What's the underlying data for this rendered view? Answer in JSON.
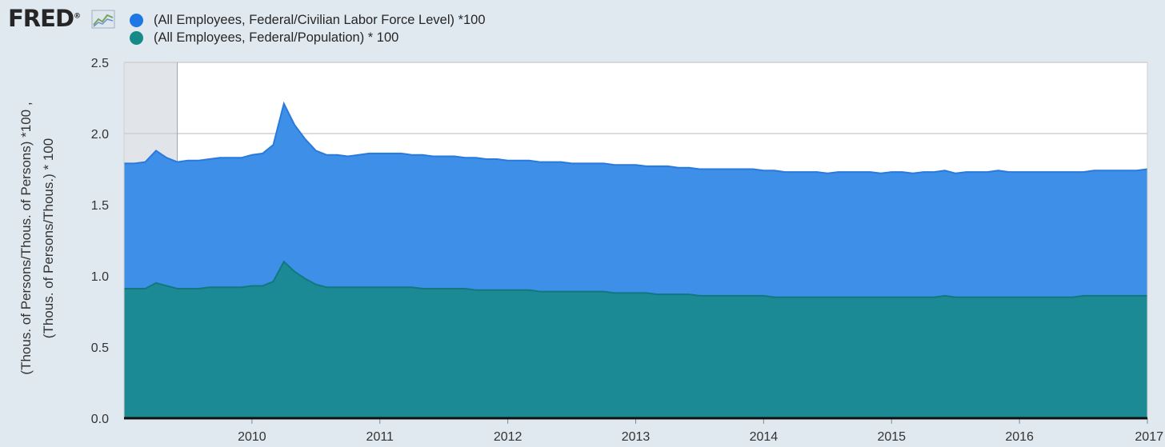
{
  "brand": {
    "logo_text": "FRED",
    "logo_mark": "®",
    "icon": "line-chart-icon"
  },
  "chart_data": {
    "type": "area",
    "title": "",
    "ylabel_lines": [
      "(Thous. of Persons/Thous. of Persons) *100 ,",
      "(Thous. of Persons/Thous.) * 100"
    ],
    "xlabel": "",
    "ylim": [
      0,
      2.5
    ],
    "yticks": [
      "0.0",
      "0.5",
      "1.0",
      "1.5",
      "2.0",
      "2.5"
    ],
    "xlim": [
      "2009-01",
      "2017-01"
    ],
    "xticks": [
      "2010",
      "2011",
      "2012",
      "2013",
      "2014",
      "2015",
      "2016",
      "2017"
    ],
    "grid": "horizontal",
    "recession_shading": [
      "2009-01",
      "2009-06"
    ],
    "x": [
      "2009-01",
      "2009-02",
      "2009-03",
      "2009-04",
      "2009-05",
      "2009-06",
      "2009-07",
      "2009-08",
      "2009-09",
      "2009-10",
      "2009-11",
      "2009-12",
      "2010-01",
      "2010-02",
      "2010-03",
      "2010-04",
      "2010-05",
      "2010-06",
      "2010-07",
      "2010-08",
      "2010-09",
      "2010-10",
      "2010-11",
      "2010-12",
      "2011-01",
      "2011-02",
      "2011-03",
      "2011-04",
      "2011-05",
      "2011-06",
      "2011-07",
      "2011-08",
      "2011-09",
      "2011-10",
      "2011-11",
      "2011-12",
      "2012-01",
      "2012-02",
      "2012-03",
      "2012-04",
      "2012-05",
      "2012-06",
      "2012-07",
      "2012-08",
      "2012-09",
      "2012-10",
      "2012-11",
      "2012-12",
      "2013-01",
      "2013-02",
      "2013-03",
      "2013-04",
      "2013-05",
      "2013-06",
      "2013-07",
      "2013-08",
      "2013-09",
      "2013-10",
      "2013-11",
      "2013-12",
      "2014-01",
      "2014-02",
      "2014-03",
      "2014-04",
      "2014-05",
      "2014-06",
      "2014-07",
      "2014-08",
      "2014-09",
      "2014-10",
      "2014-11",
      "2014-12",
      "2015-01",
      "2015-02",
      "2015-03",
      "2015-04",
      "2015-05",
      "2015-06",
      "2015-07",
      "2015-08",
      "2015-09",
      "2015-10",
      "2015-11",
      "2015-12",
      "2016-01",
      "2016-02",
      "2016-03",
      "2016-04",
      "2016-05",
      "2016-06",
      "2016-07",
      "2016-08",
      "2016-09",
      "2016-10",
      "2016-11",
      "2016-12",
      "2017-01"
    ],
    "series": [
      {
        "name": "(All Employees, Federal/Civilian Labor Force Level) *100",
        "color": "#3d8fe8",
        "line_color": "#2a7ade",
        "values": [
          1.79,
          1.79,
          1.8,
          1.88,
          1.83,
          1.8,
          1.81,
          1.81,
          1.82,
          1.83,
          1.83,
          1.83,
          1.85,
          1.86,
          1.92,
          2.21,
          2.06,
          1.96,
          1.88,
          1.85,
          1.85,
          1.84,
          1.85,
          1.86,
          1.86,
          1.86,
          1.86,
          1.85,
          1.85,
          1.84,
          1.84,
          1.84,
          1.83,
          1.83,
          1.82,
          1.82,
          1.81,
          1.81,
          1.81,
          1.8,
          1.8,
          1.8,
          1.79,
          1.79,
          1.79,
          1.79,
          1.78,
          1.78,
          1.78,
          1.77,
          1.77,
          1.77,
          1.76,
          1.76,
          1.75,
          1.75,
          1.75,
          1.75,
          1.75,
          1.75,
          1.74,
          1.74,
          1.73,
          1.73,
          1.73,
          1.73,
          1.72,
          1.73,
          1.73,
          1.73,
          1.73,
          1.72,
          1.73,
          1.73,
          1.72,
          1.73,
          1.73,
          1.74,
          1.72,
          1.73,
          1.73,
          1.73,
          1.74,
          1.73,
          1.73,
          1.73,
          1.73,
          1.73,
          1.73,
          1.73,
          1.73,
          1.74,
          1.74,
          1.74,
          1.74,
          1.74,
          1.75
        ]
      },
      {
        "name": "(All Employees, Federal/Population) * 100",
        "color": "#1b8a94",
        "line_color": "#11787f",
        "values": [
          0.91,
          0.91,
          0.91,
          0.95,
          0.93,
          0.91,
          0.91,
          0.91,
          0.92,
          0.92,
          0.92,
          0.92,
          0.93,
          0.93,
          0.96,
          1.1,
          1.03,
          0.98,
          0.94,
          0.92,
          0.92,
          0.92,
          0.92,
          0.92,
          0.92,
          0.92,
          0.92,
          0.92,
          0.91,
          0.91,
          0.91,
          0.91,
          0.91,
          0.9,
          0.9,
          0.9,
          0.9,
          0.9,
          0.9,
          0.89,
          0.89,
          0.89,
          0.89,
          0.89,
          0.89,
          0.89,
          0.88,
          0.88,
          0.88,
          0.88,
          0.87,
          0.87,
          0.87,
          0.87,
          0.86,
          0.86,
          0.86,
          0.86,
          0.86,
          0.86,
          0.86,
          0.85,
          0.85,
          0.85,
          0.85,
          0.85,
          0.85,
          0.85,
          0.85,
          0.85,
          0.85,
          0.85,
          0.85,
          0.85,
          0.85,
          0.85,
          0.85,
          0.86,
          0.85,
          0.85,
          0.85,
          0.85,
          0.85,
          0.85,
          0.85,
          0.85,
          0.85,
          0.85,
          0.85,
          0.85,
          0.86,
          0.86,
          0.86,
          0.86,
          0.86,
          0.86,
          0.86
        ]
      }
    ]
  }
}
